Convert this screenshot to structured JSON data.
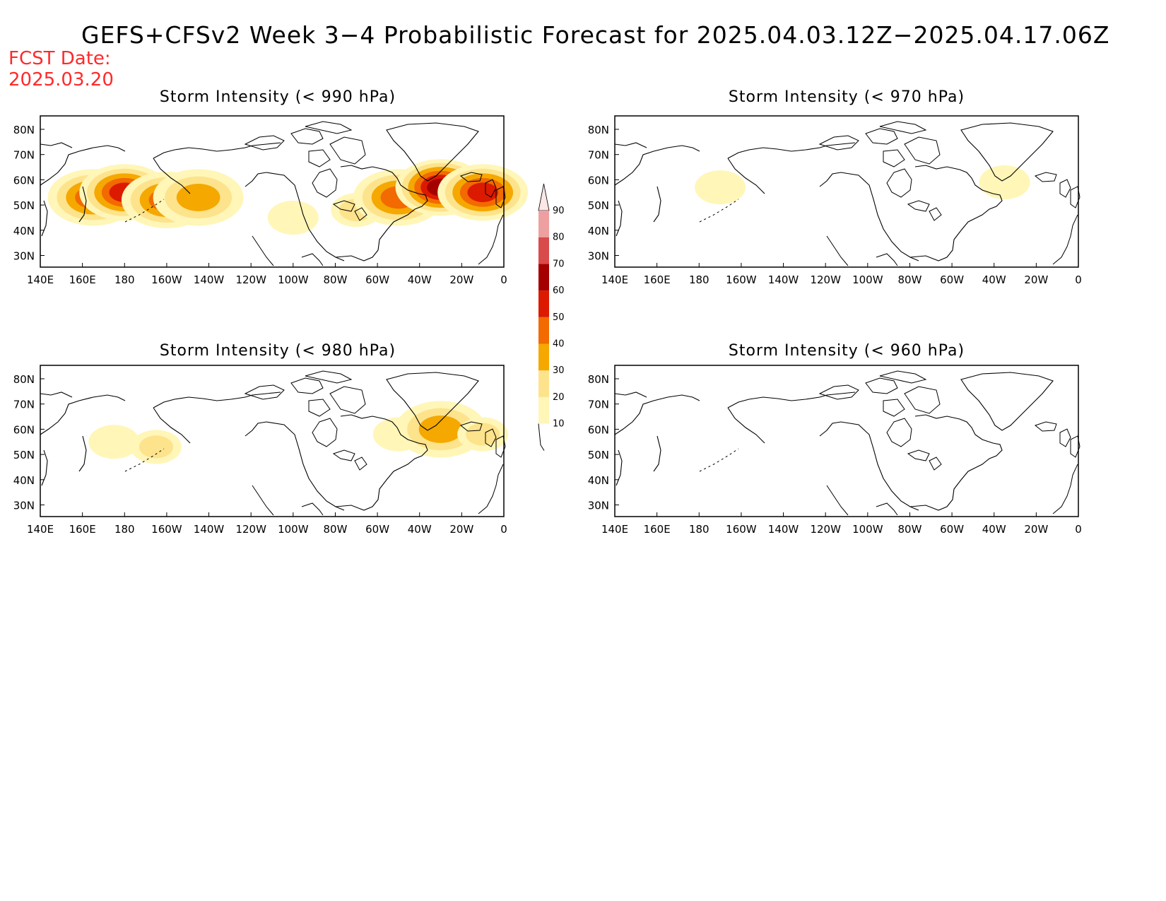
{
  "title": "GEFS+CFSv2 Week 3−4 Probabilistic Forecast for 2025.04.03.12Z−2025.04.17.06Z",
  "fcst_label": "FCST Date:",
  "fcst_date": "2025.03.20",
  "panels": [
    {
      "title": "Storm Intensity (< 990 hPa)"
    },
    {
      "title": "Storm Intensity (< 970 hPa)"
    },
    {
      "title": "Storm Intensity (< 980 hPa)"
    },
    {
      "title": "Storm Intensity (< 960 hPa)"
    }
  ],
  "lon_ticks": [
    "140E",
    "160E",
    "180",
    "160W",
    "140W",
    "120W",
    "100W",
    "80W",
    "60W",
    "40W",
    "20W",
    "0"
  ],
  "lat_ticks": [
    "80N",
    "70N",
    "60N",
    "50N",
    "40N",
    "30N"
  ],
  "colorbar": {
    "levels": [
      "10",
      "20",
      "30",
      "40",
      "50",
      "60",
      "70",
      "80",
      "90"
    ],
    "colors": [
      "#fff6b8",
      "#fde38c",
      "#f5a800",
      "#f26a00",
      "#dc1a00",
      "#a50000",
      "#d94b4b",
      "#eea0a0",
      "#fde6e6"
    ]
  },
  "chart_data": {
    "type": "heatmap",
    "lon_range": [
      "140E",
      "0"
    ],
    "lat_range": [
      25,
      85
    ],
    "regions": {
      "panel_990": [
        {
          "lon": 165,
          "lat": 53,
          "value": 45
        },
        {
          "lon": 180,
          "lat": 55,
          "value": 55
        },
        {
          "lon": -160,
          "lat": 52,
          "value": 45
        },
        {
          "lon": -145,
          "lat": 53,
          "value": 35
        },
        {
          "lon": -100,
          "lat": 45,
          "value": 15
        },
        {
          "lon": -70,
          "lat": 48,
          "value": 25
        },
        {
          "lon": -50,
          "lat": 53,
          "value": 45
        },
        {
          "lon": -30,
          "lat": 57,
          "value": 65
        },
        {
          "lon": -10,
          "lat": 55,
          "value": 55
        }
      ],
      "panel_970": [
        {
          "lon": -170,
          "lat": 57,
          "value": 10
        },
        {
          "lon": -35,
          "lat": 59,
          "value": 15
        }
      ],
      "panel_980": [
        {
          "lon": 175,
          "lat": 55,
          "value": 15
        },
        {
          "lon": -165,
          "lat": 53,
          "value": 25
        },
        {
          "lon": -50,
          "lat": 58,
          "value": 15
        },
        {
          "lon": -30,
          "lat": 60,
          "value": 35
        },
        {
          "lon": -10,
          "lat": 58,
          "value": 25
        }
      ],
      "panel_960": []
    }
  }
}
